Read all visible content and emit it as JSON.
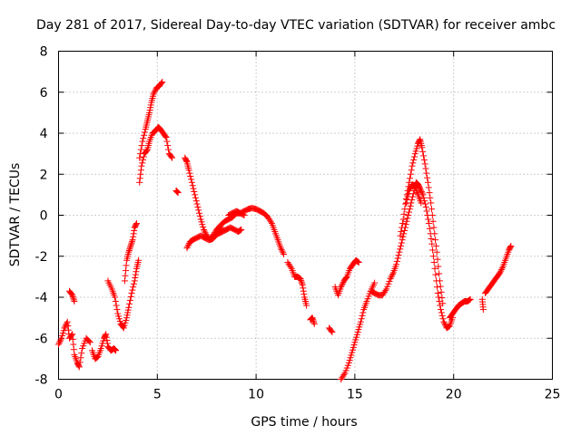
{
  "chart_data": {
    "type": "scatter",
    "title": "Day 281 of 2017, Sidereal Day-to-day VTEC variation (SDTVAR) for receiver ambc",
    "xlabel": "GPS time / hours",
    "ylabel": "SDTVAR / TECUs",
    "xlim": [
      0,
      25
    ],
    "ylim": [
      -8,
      8
    ],
    "xticks": [
      "0",
      "5",
      "10",
      "15",
      "20",
      "25"
    ],
    "yticks": [
      "-8",
      "-6",
      "-4",
      "-2",
      "0",
      "2",
      "4",
      "6",
      "8"
    ],
    "grid": true,
    "marker": "+",
    "marker_color": "#ff0000",
    "series": [
      {
        "name": "SDTVAR",
        "segments": [
          [
            [
              0.0,
              -6.3
            ],
            [
              0.15,
              -6.0
            ],
            [
              0.3,
              -5.5
            ],
            [
              0.45,
              -5.2
            ],
            [
              0.55,
              -6.0
            ],
            [
              0.7,
              -5.8
            ],
            [
              0.8,
              -6.8
            ],
            [
              0.95,
              -7.2
            ],
            [
              1.05,
              -7.4
            ],
            [
              1.2,
              -6.5
            ],
            [
              1.4,
              -6.0
            ],
            [
              1.6,
              -6.2
            ]
          ],
          [
            [
              0.55,
              -3.7
            ],
            [
              0.7,
              -3.9
            ],
            [
              0.8,
              -4.2
            ]
          ],
          [
            [
              1.7,
              -6.6
            ],
            [
              1.85,
              -7.0
            ],
            [
              2.0,
              -6.9
            ],
            [
              2.15,
              -6.5
            ],
            [
              2.3,
              -6.0
            ],
            [
              2.4,
              -5.8
            ],
            [
              2.5,
              -6.4
            ],
            [
              2.65,
              -6.6
            ],
            [
              2.8,
              -6.5
            ],
            [
              2.9,
              -6.6
            ]
          ],
          [
            [
              2.5,
              -3.2
            ],
            [
              2.7,
              -3.6
            ],
            [
              2.85,
              -4.0
            ],
            [
              3.0,
              -4.8
            ],
            [
              3.15,
              -5.3
            ],
            [
              3.3,
              -5.5
            ],
            [
              3.45,
              -5.0
            ],
            [
              3.55,
              -4.5
            ],
            [
              3.7,
              -3.8
            ],
            [
              3.85,
              -3.2
            ],
            [
              3.95,
              -2.6
            ],
            [
              4.05,
              -2.2
            ]
          ],
          [
            [
              3.35,
              -3.2
            ],
            [
              3.45,
              -2.2
            ],
            [
              3.55,
              -1.8
            ],
            [
              3.65,
              -1.5
            ],
            [
              3.75,
              -1.2
            ],
            [
              3.85,
              -0.6
            ],
            [
              3.95,
              -0.4
            ]
          ],
          [
            [
              4.1,
              1.6
            ],
            [
              4.2,
              2.4
            ],
            [
              4.35,
              3.0
            ],
            [
              4.5,
              3.2
            ],
            [
              4.6,
              3.6
            ],
            [
              4.75,
              4.0
            ],
            [
              4.9,
              4.1
            ],
            [
              5.05,
              4.3
            ],
            [
              5.15,
              4.2
            ],
            [
              5.3,
              4.0
            ],
            [
              5.45,
              3.8
            ],
            [
              5.6,
              3.0
            ],
            [
              5.75,
              2.8
            ]
          ],
          [
            [
              4.1,
              2.8
            ],
            [
              4.25,
              3.6
            ],
            [
              4.4,
              4.2
            ],
            [
              4.5,
              4.6
            ],
            [
              4.6,
              5.0
            ],
            [
              4.7,
              5.5
            ],
            [
              4.8,
              5.9
            ],
            [
              4.95,
              6.2
            ],
            [
              5.1,
              6.3
            ],
            [
              5.25,
              6.5
            ]
          ],
          [
            [
              5.95,
              1.2
            ],
            [
              6.05,
              1.1
            ]
          ],
          [
            [
              6.4,
              2.8
            ],
            [
              6.5,
              2.6
            ],
            [
              6.6,
              2.2
            ],
            [
              6.75,
              1.6
            ],
            [
              6.9,
              1.0
            ],
            [
              7.05,
              0.4
            ],
            [
              7.2,
              -0.2
            ],
            [
              7.35,
              -0.7
            ],
            [
              7.5,
              -1.0
            ],
            [
              7.65,
              -1.2
            ],
            [
              7.8,
              -1.15
            ],
            [
              7.95,
              -1.0
            ],
            [
              8.1,
              -0.8
            ],
            [
              8.25,
              -0.6
            ]
          ],
          [
            [
              6.5,
              -1.6
            ],
            [
              6.65,
              -1.3
            ],
            [
              6.8,
              -1.2
            ],
            [
              7.0,
              -1.1
            ],
            [
              7.2,
              -1.0
            ],
            [
              7.4,
              -1.1
            ],
            [
              7.6,
              -1.2
            ],
            [
              7.8,
              -1.0
            ],
            [
              8.0,
              -0.7
            ],
            [
              8.2,
              -0.5
            ],
            [
              8.4,
              -0.3
            ],
            [
              8.6,
              -0.2
            ],
            [
              8.8,
              -0.1
            ],
            [
              9.0,
              0.1
            ],
            [
              9.2,
              0.1
            ],
            [
              9.4,
              0.2
            ],
            [
              9.6,
              0.3
            ],
            [
              9.8,
              0.35
            ],
            [
              10.0,
              0.3
            ],
            [
              10.2,
              0.2
            ],
            [
              10.4,
              0.1
            ],
            [
              10.6,
              -0.1
            ],
            [
              10.8,
              -0.4
            ],
            [
              10.95,
              -0.8
            ],
            [
              11.1,
              -1.2
            ],
            [
              11.25,
              -1.6
            ],
            [
              11.4,
              -1.9
            ]
          ],
          [
            [
              8.1,
              -0.9
            ],
            [
              8.3,
              -0.8
            ],
            [
              8.5,
              -0.7
            ],
            [
              8.7,
              -0.6
            ],
            [
              8.9,
              -0.7
            ],
            [
              9.1,
              -0.8
            ],
            [
              9.25,
              -0.7
            ]
          ],
          [
            [
              8.6,
              0.0
            ],
            [
              8.8,
              0.1
            ],
            [
              9.0,
              0.2
            ],
            [
              9.2,
              0.1
            ],
            [
              9.4,
              0.0
            ]
          ],
          [
            [
              11.6,
              -2.3
            ],
            [
              11.8,
              -2.6
            ],
            [
              11.95,
              -3.0
            ],
            [
              12.1,
              -3.0
            ],
            [
              12.25,
              -3.1
            ],
            [
              12.35,
              -3.4
            ],
            [
              12.45,
              -4.0
            ],
            [
              12.55,
              -4.4
            ]
          ],
          [
            [
              12.75,
              -5.1
            ],
            [
              12.85,
              -5.0
            ],
            [
              12.95,
              -5.3
            ]
          ],
          [
            [
              13.7,
              -5.5
            ],
            [
              13.85,
              -5.7
            ]
          ],
          [
            [
              14.0,
              -3.5
            ],
            [
              14.15,
              -3.9
            ],
            [
              14.3,
              -3.5
            ],
            [
              14.45,
              -3.2
            ],
            [
              14.6,
              -3.0
            ],
            [
              14.75,
              -2.6
            ],
            [
              14.9,
              -2.4
            ],
            [
              15.05,
              -2.2
            ],
            [
              15.2,
              -2.3
            ]
          ],
          [
            [
              14.3,
              -8.0
            ],
            [
              14.5,
              -7.7
            ],
            [
              14.7,
              -7.2
            ],
            [
              14.85,
              -6.7
            ],
            [
              15.0,
              -6.2
            ],
            [
              15.15,
              -5.7
            ],
            [
              15.3,
              -5.2
            ],
            [
              15.45,
              -4.6
            ],
            [
              15.6,
              -4.2
            ],
            [
              15.8,
              -3.7
            ],
            [
              16.0,
              -3.3
            ]
          ],
          [
            [
              15.8,
              -3.7
            ],
            [
              16.0,
              -3.8
            ],
            [
              16.2,
              -3.9
            ],
            [
              16.4,
              -3.9
            ],
            [
              16.6,
              -3.6
            ],
            [
              16.8,
              -3.1
            ],
            [
              16.95,
              -2.8
            ],
            [
              17.1,
              -2.4
            ],
            [
              17.25,
              -1.8
            ],
            [
              17.4,
              -1.2
            ],
            [
              17.55,
              -0.6
            ],
            [
              17.7,
              0.0
            ],
            [
              17.85,
              0.6
            ],
            [
              18.0,
              1.2
            ],
            [
              18.1,
              1.6
            ],
            [
              18.2,
              1.5
            ],
            [
              18.3,
              1.3
            ],
            [
              18.45,
              1.0
            ],
            [
              18.6,
              0.4
            ],
            [
              18.75,
              -0.4
            ],
            [
              18.9,
              -1.4
            ],
            [
              19.05,
              -2.6
            ],
            [
              19.2,
              -3.8
            ],
            [
              19.35,
              -4.6
            ],
            [
              19.5,
              -5.2
            ],
            [
              19.65,
              -5.5
            ],
            [
              19.8,
              -5.4
            ],
            [
              19.95,
              -5.0
            ]
          ],
          [
            [
              17.3,
              -1.0
            ],
            [
              17.45,
              -0.2
            ],
            [
              17.6,
              0.8
            ],
            [
              17.75,
              1.6
            ],
            [
              17.9,
              2.4
            ],
            [
              18.05,
              3.0
            ],
            [
              18.2,
              3.5
            ],
            [
              18.3,
              3.7
            ],
            [
              18.4,
              3.3
            ],
            [
              18.55,
              2.5
            ],
            [
              18.7,
              1.6
            ],
            [
              18.85,
              0.6
            ],
            [
              19.0,
              -0.6
            ],
            [
              19.15,
              -1.8
            ],
            [
              19.3,
              -3.2
            ],
            [
              19.45,
              -4.3
            ]
          ],
          [
            [
              17.6,
              0.6
            ],
            [
              17.75,
              1.2
            ],
            [
              17.9,
              1.5
            ],
            [
              18.05,
              1.4
            ],
            [
              18.2,
              1.0
            ],
            [
              18.35,
              0.6
            ]
          ],
          [
            [
              19.8,
              -5.0
            ],
            [
              19.95,
              -4.8
            ],
            [
              20.1,
              -4.6
            ],
            [
              20.25,
              -4.4
            ],
            [
              20.4,
              -4.3
            ],
            [
              20.55,
              -4.2
            ],
            [
              20.7,
              -4.2
            ],
            [
              20.85,
              -4.1
            ]
          ],
          [
            [
              21.45,
              -4.1
            ],
            [
              21.5,
              -4.6
            ]
          ],
          [
            [
              21.6,
              -3.8
            ],
            [
              21.75,
              -3.6
            ],
            [
              21.9,
              -3.4
            ],
            [
              22.05,
              -3.2
            ],
            [
              22.2,
              -3.0
            ],
            [
              22.35,
              -2.8
            ],
            [
              22.5,
              -2.5
            ],
            [
              22.65,
              -2.1
            ],
            [
              22.8,
              -1.7
            ],
            [
              22.9,
              -1.5
            ]
          ]
        ]
      }
    ]
  }
}
